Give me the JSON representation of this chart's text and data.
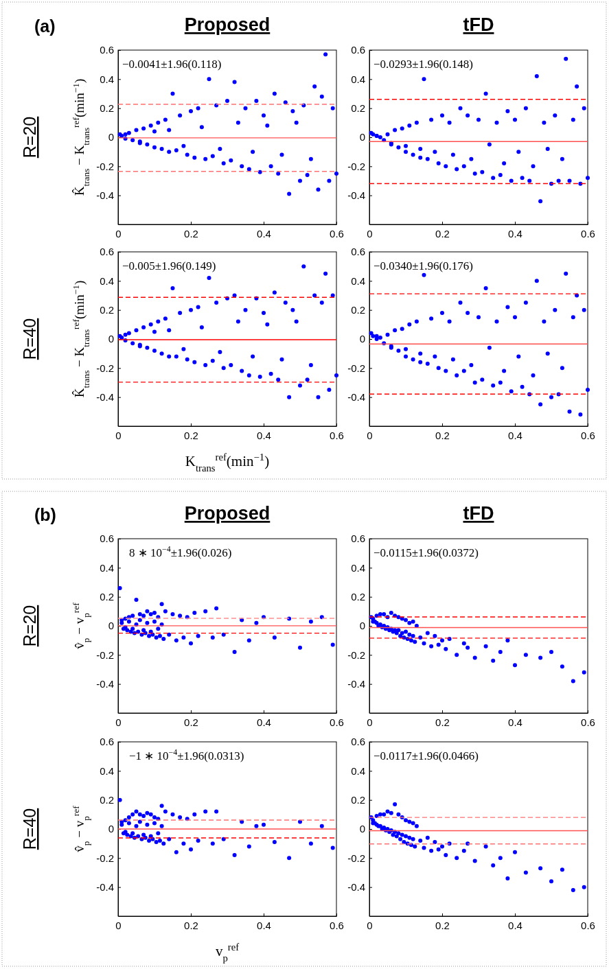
{
  "chart_data": [
    {
      "type": "scatter",
      "title": "Proposed",
      "ylabel": "K̂$_{trans}$ − K$_{trans}$$^{ref}$(min$^{−1}$)",
      "annotations": [
        "(a)",
        "R=20",
        "−0.0041±1.96(0.118)"
      ],
      "xlim": [
        0,
        0.6
      ],
      "ylim": [
        -0.6,
        0.6
      ],
      "xticks": [
        0,
        0.2,
        0.4,
        0.6
      ],
      "yticks": [
        -0.4,
        -0.2,
        0,
        0.2,
        0.4,
        0.6
      ],
      "x": [
        0.005,
        0.01,
        0.02,
        0.03,
        0.04,
        0.05,
        0.06,
        0.07,
        0.08,
        0.09,
        0.1,
        0.11,
        0.12,
        0.13,
        0.14,
        0.15,
        0.16,
        0.17,
        0.19,
        0.2,
        0.21,
        0.22,
        0.24,
        0.25,
        0.26,
        0.27,
        0.29,
        0.3,
        0.31,
        0.32,
        0.34,
        0.35,
        0.36,
        0.38,
        0.39,
        0.4,
        0.42,
        0.43,
        0.44,
        0.46,
        0.47,
        0.48,
        0.5,
        0.51,
        0.52,
        0.54,
        0.55,
        0.56,
        0.57,
        0.58,
        0.59,
        0.6,
        0.02,
        0.06,
        0.1,
        0.14,
        0.18,
        0.23,
        0.28,
        0.33,
        0.37,
        0.41,
        0.45,
        0.49,
        0.53
      ],
      "series": [
        {
          "color": "#0000ff",
          "values": [
            0.02,
            0.01,
            -0.01,
            0.03,
            -0.02,
            0.05,
            -0.04,
            0.06,
            -0.05,
            0.08,
            -0.07,
            0.1,
            -0.08,
            0.12,
            -0.1,
            0.3,
            -0.09,
            0.15,
            -0.12,
            0.18,
            -0.14,
            0.2,
            -0.15,
            0.4,
            -0.13,
            0.22,
            -0.18,
            0.25,
            -0.16,
            0.38,
            -0.2,
            0.2,
            -0.22,
            0.25,
            -0.24,
            0.15,
            -0.2,
            0.3,
            -0.25,
            0.24,
            -0.39,
            0.18,
            -0.3,
            0.22,
            -0.26,
            0.35,
            -0.36,
            0.28,
            0.57,
            -0.3,
            0.2,
            -0.25,
            0.02,
            -0.03,
            0.04,
            0.05,
            -0.06,
            0.07,
            -0.08,
            0.1,
            -0.1,
            0.08,
            -0.12,
            0.1,
            -0.15
          ]
        }
      ],
      "ref_lines": [
        {
          "axis": "y",
          "value": -0.0041,
          "color": "#ff5050",
          "line_style": "solid"
        },
        {
          "axis": "y",
          "value": 0.227,
          "color": "#ff7070",
          "line_style": "dashed"
        },
        {
          "axis": "y",
          "value": -0.235,
          "color": "#ff7070",
          "line_style": "dashed"
        }
      ]
    },
    {
      "type": "scatter",
      "title": "tFD",
      "annotations": [
        "−0.0293±1.96(0.148)"
      ],
      "xlim": [
        0,
        0.6
      ],
      "ylim": [
        -0.6,
        0.6
      ],
      "xticks": [
        0,
        0.2,
        0.4,
        0.6
      ],
      "yticks": [
        -0.4,
        -0.2,
        0,
        0.2,
        0.4,
        0.6
      ],
      "x": [
        0.005,
        0.01,
        0.02,
        0.03,
        0.04,
        0.05,
        0.06,
        0.07,
        0.08,
        0.09,
        0.1,
        0.11,
        0.12,
        0.13,
        0.14,
        0.15,
        0.16,
        0.17,
        0.19,
        0.2,
        0.21,
        0.22,
        0.24,
        0.25,
        0.26,
        0.27,
        0.29,
        0.3,
        0.31,
        0.32,
        0.34,
        0.35,
        0.36,
        0.38,
        0.39,
        0.4,
        0.42,
        0.43,
        0.44,
        0.46,
        0.47,
        0.48,
        0.5,
        0.51,
        0.52,
        0.54,
        0.55,
        0.56,
        0.57,
        0.58,
        0.59,
        0.6,
        0.02,
        0.06,
        0.1,
        0.14,
        0.18,
        0.23,
        0.28,
        0.33,
        0.37,
        0.41,
        0.45,
        0.49,
        0.53
      ],
      "series": [
        {
          "color": "#0000ff",
          "values": [
            0.03,
            0.02,
            0.01,
            0.0,
            -0.02,
            0.02,
            -0.05,
            0.05,
            -0.07,
            0.06,
            -0.1,
            0.08,
            -0.12,
            0.1,
            -0.14,
            0.4,
            -0.15,
            0.12,
            -0.18,
            0.15,
            -0.2,
            0.1,
            -0.22,
            0.2,
            -0.2,
            0.15,
            -0.25,
            0.12,
            -0.24,
            0.3,
            -0.28,
            0.1,
            -0.26,
            0.18,
            -0.3,
            0.12,
            -0.28,
            0.2,
            -0.3,
            0.42,
            -0.44,
            0.1,
            -0.32,
            0.15,
            -0.3,
            0.54,
            -0.3,
            0.12,
            0.35,
            -0.32,
            0.2,
            -0.28,
            0.01,
            -0.04,
            -0.06,
            -0.08,
            -0.1,
            -0.12,
            -0.15,
            -0.05,
            -0.18,
            -0.1,
            -0.2,
            -0.08,
            -0.15
          ]
        }
      ],
      "ref_lines": [
        {
          "axis": "y",
          "value": -0.0293,
          "color": "#ff5050",
          "line_style": "solid"
        },
        {
          "axis": "y",
          "value": 0.261,
          "color": "#ff0000",
          "line_style": "dashed"
        },
        {
          "axis": "y",
          "value": -0.319,
          "color": "#ff0000",
          "line_style": "dashed"
        }
      ]
    },
    {
      "type": "scatter",
      "xlabel": "K$_{trans}$$^{ref}$(min$^{−1}$)",
      "ylabel": "K̂$_{trans}$ − K$_{trans}$$^{ref}$(min$^{−1}$)",
      "annotations": [
        "R=40",
        "−0.005±1.96(0.149)"
      ],
      "xlim": [
        0,
        0.6
      ],
      "ylim": [
        -0.6,
        0.6
      ],
      "xticks": [
        0,
        0.2,
        0.4,
        0.6
      ],
      "yticks": [
        -0.4,
        -0.2,
        0,
        0.2,
        0.4,
        0.6
      ],
      "x": [
        0.005,
        0.01,
        0.02,
        0.03,
        0.04,
        0.05,
        0.06,
        0.07,
        0.08,
        0.09,
        0.1,
        0.11,
        0.12,
        0.13,
        0.14,
        0.15,
        0.16,
        0.17,
        0.19,
        0.2,
        0.21,
        0.22,
        0.24,
        0.25,
        0.26,
        0.27,
        0.29,
        0.3,
        0.31,
        0.32,
        0.34,
        0.35,
        0.36,
        0.38,
        0.39,
        0.4,
        0.42,
        0.43,
        0.44,
        0.46,
        0.47,
        0.48,
        0.5,
        0.51,
        0.52,
        0.54,
        0.55,
        0.56,
        0.57,
        0.58,
        0.59,
        0.6,
        0.02,
        0.06,
        0.1,
        0.14,
        0.18,
        0.23,
        0.28,
        0.33,
        0.37,
        0.41,
        0.45,
        0.49,
        0.53
      ],
      "series": [
        {
          "color": "#0000ff",
          "values": [
            0.02,
            0.01,
            -0.01,
            0.04,
            -0.03,
            0.06,
            -0.05,
            0.08,
            -0.06,
            0.1,
            -0.08,
            0.12,
            -0.1,
            0.14,
            -0.12,
            0.35,
            -0.12,
            0.18,
            -0.14,
            0.2,
            -0.16,
            0.22,
            -0.18,
            0.42,
            -0.15,
            0.25,
            -0.2,
            0.28,
            -0.18,
            0.3,
            -0.22,
            0.2,
            -0.25,
            0.28,
            -0.26,
            0.18,
            -0.24,
            0.32,
            -0.28,
            0.25,
            -0.4,
            0.2,
            -0.32,
            0.5,
            -0.28,
            0.3,
            -0.4,
            0.25,
            0.45,
            -0.35,
            0.3,
            -0.25,
            0.03,
            -0.04,
            0.05,
            0.06,
            -0.07,
            0.08,
            -0.09,
            0.12,
            -0.12,
            0.1,
            -0.14,
            0.12,
            -0.18
          ]
        }
      ],
      "ref_lines": [
        {
          "axis": "y",
          "value": -0.005,
          "color": "#ff0000",
          "line_style": "solid"
        },
        {
          "axis": "y",
          "value": 0.287,
          "color": "#ff0000",
          "line_style": "dashed"
        },
        {
          "axis": "y",
          "value": -0.297,
          "color": "#ff0000",
          "line_style": "dashed"
        }
      ]
    },
    {
      "type": "scatter",
      "annotations": [
        "−0.0340±1.96(0.176)"
      ],
      "xlim": [
        0,
        0.6
      ],
      "ylim": [
        -0.6,
        0.6
      ],
      "xticks": [
        0,
        0.2,
        0.4,
        0.6
      ],
      "yticks": [
        -0.4,
        -0.2,
        0,
        0.2,
        0.4,
        0.6
      ],
      "x": [
        0.005,
        0.01,
        0.02,
        0.03,
        0.04,
        0.05,
        0.06,
        0.07,
        0.08,
        0.09,
        0.1,
        0.11,
        0.12,
        0.13,
        0.14,
        0.15,
        0.16,
        0.17,
        0.19,
        0.2,
        0.21,
        0.22,
        0.24,
        0.25,
        0.26,
        0.27,
        0.29,
        0.3,
        0.31,
        0.32,
        0.34,
        0.35,
        0.36,
        0.38,
        0.39,
        0.4,
        0.42,
        0.43,
        0.44,
        0.46,
        0.47,
        0.48,
        0.5,
        0.51,
        0.52,
        0.54,
        0.55,
        0.56,
        0.57,
        0.58,
        0.59,
        0.6,
        0.02,
        0.06,
        0.1,
        0.14,
        0.18,
        0.23,
        0.28,
        0.33,
        0.37,
        0.41,
        0.45,
        0.49,
        0.53
      ],
      "series": [
        {
          "color": "#0000ff",
          "values": [
            0.04,
            0.02,
            0.0,
            0.01,
            -0.03,
            0.03,
            -0.06,
            0.06,
            -0.08,
            0.07,
            -0.12,
            0.1,
            -0.14,
            0.12,
            -0.16,
            0.44,
            -0.17,
            0.14,
            -0.2,
            0.18,
            -0.22,
            0.12,
            -0.25,
            0.25,
            -0.22,
            0.18,
            -0.3,
            0.15,
            -0.28,
            0.35,
            -0.32,
            0.12,
            -0.3,
            0.22,
            -0.36,
            0.15,
            -0.33,
            0.25,
            -0.38,
            0.4,
            -0.45,
            0.12,
            -0.4,
            0.2,
            -0.38,
            0.45,
            -0.5,
            0.15,
            0.3,
            -0.52,
            0.2,
            -0.35,
            0.02,
            -0.05,
            -0.07,
            -0.1,
            -0.12,
            -0.14,
            -0.18,
            -0.06,
            -0.22,
            -0.12,
            -0.25,
            -0.1,
            -0.2
          ]
        }
      ],
      "ref_lines": [
        {
          "axis": "y",
          "value": -0.034,
          "color": "#ff5050",
          "line_style": "solid"
        },
        {
          "axis": "y",
          "value": 0.311,
          "color": "#ff0000",
          "line_style": "dashed"
        },
        {
          "axis": "y",
          "value": -0.379,
          "color": "#ff0000",
          "line_style": "dashed"
        }
      ]
    },
    {
      "type": "scatter",
      "title": "Proposed",
      "ylabel": "v̂$_{p}$ − v$_{p}$$^{ref}$",
      "annotations": [
        "(b)",
        "R=20",
        "8 ∗ 10$^{−4}$±1.96(0.026)"
      ],
      "xlim": [
        0,
        0.6
      ],
      "ylim": [
        -0.6,
        0.6
      ],
      "xticks": [
        0,
        0.2,
        0.4,
        0.6
      ],
      "yticks": [
        -0.4,
        -0.2,
        0,
        0.2,
        0.4,
        0.6
      ],
      "x": [
        0.005,
        0.01,
        0.015,
        0.02,
        0.025,
        0.03,
        0.035,
        0.04,
        0.045,
        0.05,
        0.055,
        0.06,
        0.065,
        0.07,
        0.075,
        0.08,
        0.085,
        0.09,
        0.095,
        0.1,
        0.105,
        0.11,
        0.115,
        0.12,
        0.125,
        0.13,
        0.14,
        0.15,
        0.16,
        0.17,
        0.18,
        0.19,
        0.2,
        0.21,
        0.22,
        0.24,
        0.26,
        0.27,
        0.29,
        0.32,
        0.34,
        0.36,
        0.38,
        0.4,
        0.43,
        0.47,
        0.5,
        0.53,
        0.56,
        0.59,
        0.01,
        0.02,
        0.03,
        0.04,
        0.05,
        0.06,
        0.07,
        0.08,
        0.09,
        0.1,
        0.11,
        0.12
      ],
      "series": [
        {
          "color": "#0000ff",
          "values": [
            0.26,
            0.04,
            -0.02,
            0.05,
            -0.03,
            0.06,
            -0.04,
            0.07,
            -0.05,
            0.18,
            -0.04,
            0.08,
            -0.06,
            0.07,
            -0.05,
            0.1,
            -0.07,
            0.08,
            -0.06,
            0.09,
            -0.08,
            0.06,
            -0.07,
            0.15,
            -0.09,
            0.1,
            -0.06,
            0.08,
            -0.1,
            0.07,
            -0.08,
            0.06,
            -0.12,
            0.09,
            -0.07,
            0.1,
            -0.08,
            0.12,
            -0.06,
            -0.18,
            0.04,
            -0.1,
            0.02,
            0.06,
            -0.08,
            0.05,
            -0.15,
            0.03,
            0.06,
            -0.13,
            0.02,
            -0.01,
            0.03,
            -0.02,
            0.01,
            0.04,
            -0.03,
            0.02,
            -0.04,
            0.03,
            -0.02,
            0.01
          ]
        }
      ],
      "ref_lines": [
        {
          "axis": "y",
          "value": 0.0008,
          "color": "#ff5050",
          "line_style": "solid"
        },
        {
          "axis": "y",
          "value": 0.052,
          "color": "#ff9090",
          "line_style": "dashed"
        },
        {
          "axis": "y",
          "value": -0.05,
          "color": "#ff0000",
          "line_style": "dashed"
        }
      ]
    },
    {
      "type": "scatter",
      "title": "tFD",
      "annotations": [
        "−0.0115±1.96(0.0372)"
      ],
      "xlim": [
        0,
        0.6
      ],
      "ylim": [
        -0.6,
        0.6
      ],
      "xticks": [
        0,
        0.2,
        0.4,
        0.6
      ],
      "yticks": [
        -0.4,
        -0.2,
        0,
        0.2,
        0.4,
        0.6
      ],
      "x": [
        0.005,
        0.01,
        0.015,
        0.02,
        0.025,
        0.03,
        0.035,
        0.04,
        0.045,
        0.05,
        0.055,
        0.06,
        0.065,
        0.07,
        0.075,
        0.08,
        0.085,
        0.09,
        0.095,
        0.1,
        0.105,
        0.11,
        0.115,
        0.12,
        0.125,
        0.13,
        0.14,
        0.15,
        0.16,
        0.17,
        0.18,
        0.19,
        0.2,
        0.21,
        0.22,
        0.24,
        0.26,
        0.27,
        0.29,
        0.32,
        0.34,
        0.36,
        0.38,
        0.4,
        0.43,
        0.47,
        0.5,
        0.53,
        0.56,
        0.59,
        0.01,
        0.02,
        0.03,
        0.04,
        0.05,
        0.06,
        0.07,
        0.08,
        0.09,
        0.1,
        0.11,
        0.12
      ],
      "series": [
        {
          "color": "#0000ff",
          "values": [
            0.06,
            0.05,
            0.03,
            0.07,
            0.0,
            0.08,
            -0.01,
            0.08,
            -0.02,
            0.06,
            -0.03,
            0.09,
            -0.04,
            0.07,
            -0.05,
            0.06,
            -0.07,
            0.05,
            -0.08,
            0.04,
            -0.09,
            0.02,
            -0.1,
            0.03,
            -0.11,
            0.0,
            -0.08,
            -0.12,
            -0.05,
            -0.14,
            -0.07,
            -0.13,
            -0.1,
            -0.16,
            -0.09,
            -0.2,
            -0.12,
            -0.15,
            -0.22,
            -0.14,
            -0.24,
            -0.18,
            -0.1,
            -0.27,
            -0.2,
            -0.22,
            -0.18,
            -0.28,
            -0.38,
            -0.32,
            0.03,
            0.02,
            0.01,
            0.0,
            -0.01,
            -0.02,
            -0.03,
            -0.03,
            -0.05,
            -0.04,
            -0.06,
            -0.07
          ]
        }
      ],
      "ref_lines": [
        {
          "axis": "y",
          "value": -0.0115,
          "color": "#ff5050",
          "line_style": "solid"
        },
        {
          "axis": "y",
          "value": 0.0614,
          "color": "#ff0000",
          "line_style": "dashed"
        },
        {
          "axis": "y",
          "value": -0.0844,
          "color": "#ff0000",
          "line_style": "dashed"
        }
      ]
    },
    {
      "type": "scatter",
      "xlabel": "v$_{p}$$^{ref}$",
      "ylabel": "v̂$_{p}$ − v$_{p}$$^{ref}$",
      "annotations": [
        "R=40",
        "−1 ∗ 10$^{−4}$±1.96(0.0313)"
      ],
      "xlim": [
        0,
        0.6
      ],
      "ylim": [
        -0.6,
        0.6
      ],
      "xticks": [
        0,
        0.2,
        0.4,
        0.6
      ],
      "yticks": [
        -0.4,
        -0.2,
        0,
        0.2,
        0.4,
        0.6
      ],
      "x": [
        0.005,
        0.01,
        0.015,
        0.02,
        0.025,
        0.03,
        0.035,
        0.04,
        0.045,
        0.05,
        0.055,
        0.06,
        0.065,
        0.07,
        0.075,
        0.08,
        0.085,
        0.09,
        0.095,
        0.1,
        0.105,
        0.11,
        0.115,
        0.12,
        0.125,
        0.13,
        0.14,
        0.15,
        0.16,
        0.17,
        0.18,
        0.19,
        0.2,
        0.21,
        0.22,
        0.24,
        0.26,
        0.27,
        0.29,
        0.32,
        0.34,
        0.36,
        0.38,
        0.4,
        0.43,
        0.47,
        0.5,
        0.53,
        0.56,
        0.59,
        0.01,
        0.02,
        0.03,
        0.04,
        0.05,
        0.06,
        0.07,
        0.08,
        0.09,
        0.1,
        0.11,
        0.12
      ],
      "series": [
        {
          "color": "#0000ff",
          "values": [
            0.2,
            0.05,
            -0.03,
            0.06,
            -0.04,
            0.08,
            -0.05,
            0.1,
            -0.06,
            0.12,
            -0.05,
            0.1,
            -0.07,
            0.09,
            -0.06,
            0.11,
            -0.08,
            0.1,
            -0.07,
            0.08,
            -0.09,
            0.07,
            -0.08,
            0.16,
            -0.1,
            0.12,
            -0.07,
            0.1,
            -0.16,
            0.08,
            -0.1,
            0.07,
            -0.14,
            0.1,
            -0.08,
            0.12,
            -0.1,
            0.12,
            -0.07,
            -0.18,
            0.05,
            -0.12,
            0.02,
            0.03,
            -0.09,
            -0.2,
            0.05,
            -0.1,
            0.02,
            -0.13,
            0.03,
            -0.02,
            0.04,
            -0.03,
            0.02,
            0.05,
            -0.04,
            0.03,
            -0.05,
            0.04,
            -0.03,
            0.02
          ]
        }
      ],
      "ref_lines": [
        {
          "axis": "y",
          "value": -0.0001,
          "color": "#ff5050",
          "line_style": "solid"
        },
        {
          "axis": "y",
          "value": 0.0612,
          "color": "#ff7070",
          "line_style": "dashed"
        },
        {
          "axis": "y",
          "value": -0.0614,
          "color": "#ff0000",
          "line_style": "dashed"
        }
      ]
    },
    {
      "type": "scatter",
      "annotations": [
        "−0.0117±1.96(0.0466)"
      ],
      "xlim": [
        0,
        0.6
      ],
      "ylim": [
        -0.6,
        0.6
      ],
      "xticks": [
        0,
        0.2,
        0.4,
        0.6
      ],
      "yticks": [
        -0.4,
        -0.2,
        0,
        0.2,
        0.4,
        0.6
      ],
      "x": [
        0.005,
        0.01,
        0.015,
        0.02,
        0.025,
        0.03,
        0.035,
        0.04,
        0.045,
        0.05,
        0.055,
        0.06,
        0.065,
        0.07,
        0.075,
        0.08,
        0.085,
        0.09,
        0.095,
        0.1,
        0.105,
        0.11,
        0.115,
        0.12,
        0.125,
        0.13,
        0.14,
        0.15,
        0.16,
        0.17,
        0.18,
        0.19,
        0.2,
        0.21,
        0.22,
        0.24,
        0.26,
        0.27,
        0.29,
        0.32,
        0.34,
        0.36,
        0.38,
        0.4,
        0.43,
        0.47,
        0.5,
        0.53,
        0.56,
        0.59,
        0.01,
        0.02,
        0.03,
        0.04,
        0.05,
        0.06,
        0.07,
        0.08,
        0.09,
        0.1,
        0.11,
        0.12
      ],
      "series": [
        {
          "color": "#0000ff",
          "values": [
            0.08,
            0.06,
            0.04,
            0.09,
            0.02,
            0.1,
            0.0,
            0.1,
            -0.01,
            0.12,
            -0.02,
            0.11,
            -0.04,
            0.17,
            -0.05,
            0.1,
            -0.07,
            0.08,
            -0.09,
            0.06,
            -0.1,
            0.05,
            -0.11,
            0.04,
            -0.12,
            0.02,
            -0.08,
            -0.13,
            -0.06,
            -0.15,
            -0.09,
            -0.14,
            -0.12,
            -0.18,
            -0.1,
            -0.2,
            -0.15,
            -0.1,
            -0.22,
            -0.12,
            -0.25,
            -0.2,
            -0.34,
            -0.16,
            -0.3,
            -0.27,
            -0.36,
            -0.28,
            -0.42,
            -0.4,
            0.04,
            0.03,
            0.02,
            0.01,
            0.0,
            -0.01,
            -0.02,
            -0.03,
            -0.04,
            -0.05,
            -0.06,
            -0.07
          ]
        }
      ],
      "ref_lines": [
        {
          "axis": "y",
          "value": -0.0117,
          "color": "#ff5050",
          "line_style": "solid"
        },
        {
          "axis": "y",
          "value": 0.0796,
          "color": "#ff7070",
          "line_style": "dashed"
        },
        {
          "axis": "y",
          "value": -0.103,
          "color": "#ff7070",
          "line_style": "dashed"
        }
      ]
    }
  ]
}
